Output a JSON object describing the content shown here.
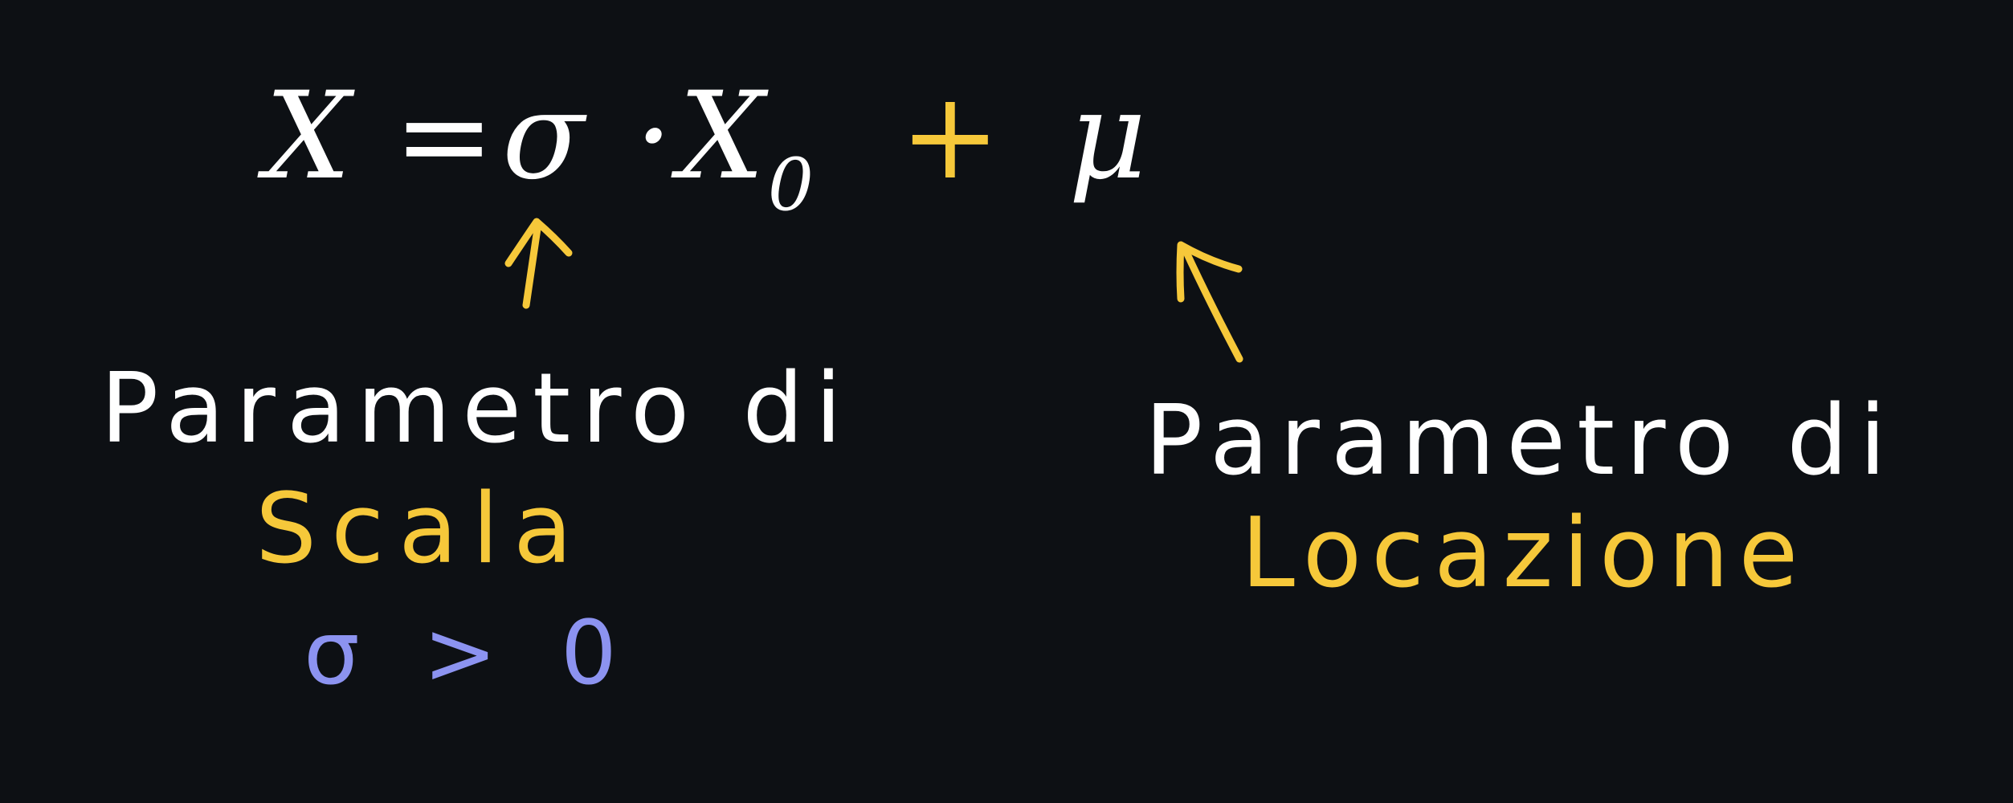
{
  "formula": {
    "X": "X",
    "equals": "=",
    "sigma": "σ",
    "dot": "·",
    "X0_base": "X",
    "X0_sub": "0",
    "plus": "+",
    "mu": "μ"
  },
  "annotations": {
    "scale_prefix": "Parametro di",
    "scale_word": "Scala",
    "scale_condition": "σ > 0",
    "location_prefix": "Parametro di",
    "location_word": "Locazione"
  },
  "colors": {
    "background": "#0d1014",
    "main_ink": "#ffffff",
    "highlight": "#f6c83a",
    "condition": "#8c93f0"
  },
  "icons": [
    "arrow-to-sigma-icon",
    "arrow-to-mu-icon"
  ]
}
